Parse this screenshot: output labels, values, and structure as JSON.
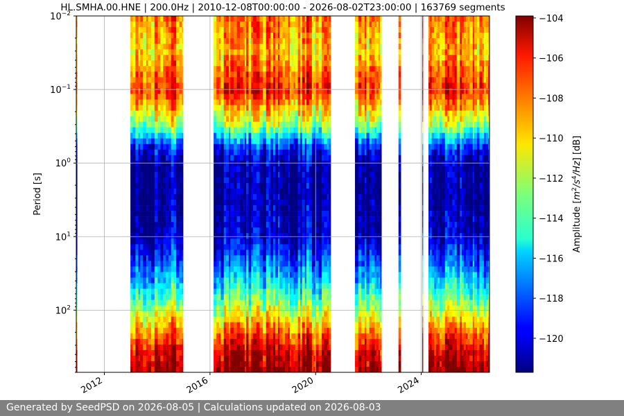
{
  "chart_data": {
    "type": "heatmap",
    "title": "HL.SMHA.00.HNE | 200.0Hz | 2010-12-08T00:00:00 - 2026-08-02T23:00:00 | 163769 segments",
    "ylabel": "Period [s]",
    "y_scale": "log",
    "y_inverted": true,
    "xlim": [
      "2010-12-08",
      "2026-08-02"
    ],
    "ylim": [
      0.01,
      700
    ],
    "x_ticks": [
      {
        "value": "2012-01-01",
        "label": "2012"
      },
      {
        "value": "2016-01-01",
        "label": "2016"
      },
      {
        "value": "2020-01-01",
        "label": "2020"
      },
      {
        "value": "2024-01-01",
        "label": "2024"
      }
    ],
    "y_ticks": [
      {
        "value": 0.01,
        "label": "10",
        "exp": "−2"
      },
      {
        "value": 0.1,
        "label": "10",
        "exp": "−1"
      },
      {
        "value": 1,
        "label": "10",
        "exp": "0"
      },
      {
        "value": 10,
        "label": "10",
        "exp": "1"
      },
      {
        "value": 100,
        "label": "10",
        "exp": "2"
      }
    ],
    "grid": true,
    "colorbar": {
      "label_prefix": "Amplitude [",
      "label_unit": "m",
      "label_exp1": "2",
      "label_mid": "/s",
      "label_exp2": "4",
      "label_mid2": "/Hz",
      "label_suffix": "] [dB]",
      "colormap": "jet",
      "range": [
        -121.7,
        -103.9
      ],
      "ticks": [
        -104,
        -106,
        -108,
        -110,
        -112,
        -114,
        -116,
        -118,
        -120
      ]
    },
    "data_periods": [
      [
        "2010-12-08",
        "2010-12-20"
      ],
      [
        "2012-12-26",
        "2014-12-25"
      ],
      [
        "2016-02-20",
        "2020-07-28"
      ],
      [
        "2021-06-28",
        "2022-06-30"
      ],
      [
        "2023-02-20",
        "2023-03-25"
      ],
      [
        "2024-01-15",
        "2024-01-25"
      ],
      [
        "2024-04-10",
        "2026-08-02"
      ]
    ],
    "amplitude_profile_db": [
      {
        "period": 0.01,
        "db": -108
      },
      {
        "period": 0.03,
        "db": -109.5
      },
      {
        "period": 0.1,
        "db": -106.5
      },
      {
        "period": 0.3,
        "db": -112
      },
      {
        "period": 0.6,
        "db": -118.5
      },
      {
        "period": 1,
        "db": -121
      },
      {
        "period": 3,
        "db": -121.3
      },
      {
        "period": 10,
        "db": -120.5
      },
      {
        "period": 25,
        "db": -117.5
      },
      {
        "period": 60,
        "db": -114
      },
      {
        "period": 100,
        "db": -111.5
      },
      {
        "period": 200,
        "db": -108
      },
      {
        "period": 400,
        "db": -105
      },
      {
        "period": 700,
        "db": -104
      }
    ]
  },
  "footer": {
    "text": "Generated by SeedPSD on 2026-08-05 | Calculations updated on 2026-08-03"
  }
}
